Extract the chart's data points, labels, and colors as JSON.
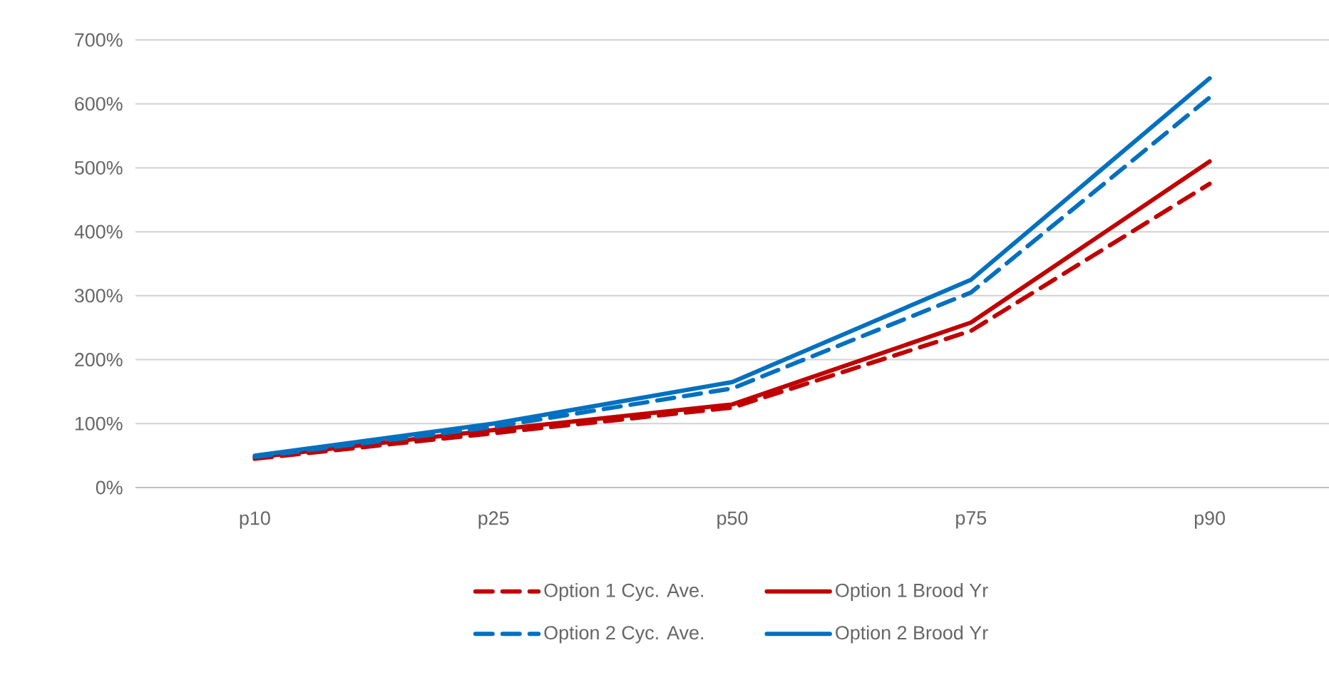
{
  "chart_data": {
    "type": "line",
    "categories": [
      "p10",
      "p25",
      "p50",
      "p75",
      "p90"
    ],
    "ylim": [
      0,
      700
    ],
    "yticks": [
      {
        "value": 0,
        "label": "0%"
      },
      {
        "value": 100,
        "label": "100%"
      },
      {
        "value": 200,
        "label": "200%"
      },
      {
        "value": 300,
        "label": "300%"
      },
      {
        "value": 400,
        "label": "400%"
      },
      {
        "value": 500,
        "label": "500%"
      },
      {
        "value": 600,
        "label": "600%"
      },
      {
        "value": 700,
        "label": "700%"
      }
    ],
    "grid": "y",
    "legend": "bottom",
    "marker": "none",
    "series": [
      {
        "name": "Option 1 Cyc. Ave.",
        "color": "#c00000",
        "line_style": "dashed",
        "values": [
          45,
          85,
          125,
          245,
          475
        ]
      },
      {
        "name": "Option 1 Brood Yr",
        "color": "#c00000",
        "line_style": "solid",
        "values": [
          47,
          90,
          130,
          258,
          510
        ]
      },
      {
        "name": "Option 2 Cyc. Ave.",
        "color": "#0070c0",
        "line_style": "dashed",
        "values": [
          48,
          95,
          155,
          305,
          610
        ]
      },
      {
        "name": "Option 2 Brood Yr",
        "color": "#0070c0",
        "line_style": "solid",
        "values": [
          50,
          100,
          165,
          325,
          640
        ]
      }
    ]
  }
}
